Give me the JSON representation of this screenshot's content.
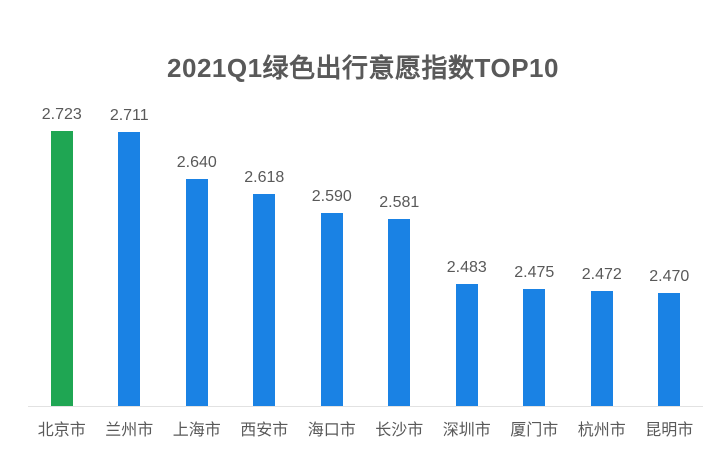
{
  "title": "2021Q1绿色出行意愿指数TOP10",
  "chart_data": {
    "type": "bar",
    "title": "2021Q1绿色出行意愿指数TOP10",
    "categories": [
      "北京市",
      "兰州市",
      "上海市",
      "西安市",
      "海口市",
      "长沙市",
      "深圳市",
      "厦门市",
      "杭州市",
      "昆明市"
    ],
    "values": [
      2.723,
      2.711,
      2.64,
      2.618,
      2.59,
      2.581,
      2.483,
      2.475,
      2.472,
      2.47
    ],
    "value_labels": [
      "2.723",
      "2.711",
      "2.640",
      "2.618",
      "2.590",
      "2.581",
      "2.483",
      "2.475",
      "2.472",
      "2.470"
    ],
    "xlabel": "",
    "ylabel": "",
    "ylim": [
      2.3,
      2.75
    ],
    "grid": false,
    "legend_position": "none",
    "data_labels": true,
    "highlight_index": 0,
    "colors": {
      "highlight_bar": "#1fa653",
      "default_bar": "#1a82e4",
      "title_text": "#595959",
      "label_text": "#595959",
      "axis_line": "#e2e2e2",
      "background": "#ffffff"
    }
  }
}
